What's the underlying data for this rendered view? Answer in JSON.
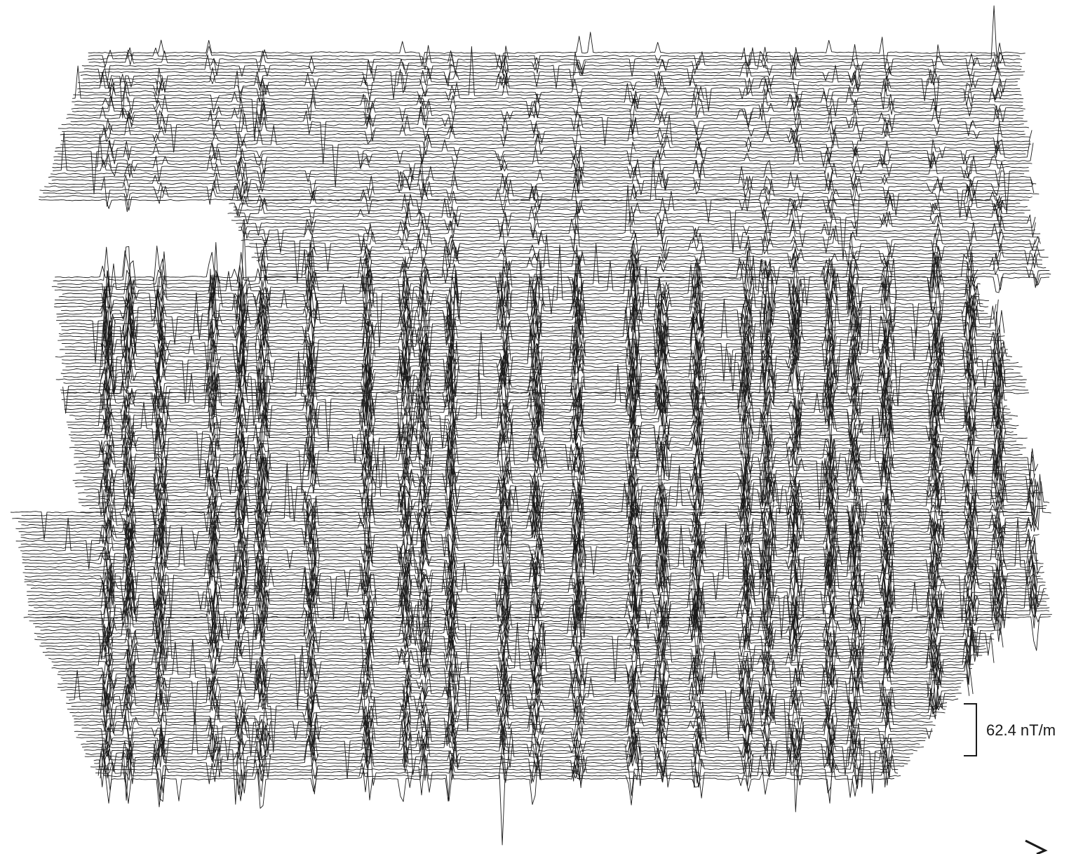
{
  "figure": {
    "type": "magnetometry-traceplot",
    "scale_bar_label": "62.4 nT/m",
    "line_color": "#1a1a1a",
    "background": "#ffffff",
    "icons": {
      "orientation": "north-arrow-icon"
    }
  }
}
